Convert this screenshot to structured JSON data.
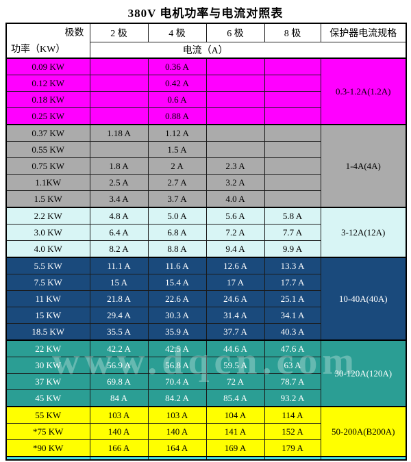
{
  "chart_data": {
    "type": "table",
    "title": "380V 电机功率与电流对照表",
    "header": {
      "corner_top": "极数",
      "corner_bottom": "功率（KW）",
      "poles": [
        "2 极",
        "4 极",
        "6 极",
        "8 极"
      ],
      "protector": "保护器电流规格",
      "current_unit_row": "电流（A）"
    },
    "sections": [
      {
        "bg": "#FF00FF",
        "fg": "#000000",
        "protector": "0.3-1.2A(1.2A)",
        "rows": [
          {
            "power": "0.09 KW",
            "currents": [
              "",
              "0.36 A",
              "",
              ""
            ]
          },
          {
            "power": "0.12 KW",
            "currents": [
              "",
              "0.42 A",
              "",
              ""
            ]
          },
          {
            "power": "0.18 KW",
            "currents": [
              "",
              "0.6 A",
              "",
              ""
            ]
          },
          {
            "power": "0.25 KW",
            "currents": [
              "",
              "0.88 A",
              "",
              ""
            ]
          }
        ]
      },
      {
        "bg": "#ABABAB",
        "fg": "#000000",
        "protector": "1-4A(4A)",
        "rows": [
          {
            "power": "0.37 KW",
            "currents": [
              "1.18 A",
              "1.12 A",
              "",
              ""
            ]
          },
          {
            "power": "0.55 KW",
            "currents": [
              "",
              "1.5 A",
              "",
              ""
            ]
          },
          {
            "power": "0.75 KW",
            "currents": [
              "1.8 A",
              "2 A",
              "2.3 A",
              ""
            ]
          },
          {
            "power": "1.1KW",
            "currents": [
              "2.5 A",
              "2.7 A",
              "3.2 A",
              ""
            ]
          },
          {
            "power": "1.5 KW",
            "currents": [
              "3.4 A",
              "3.7 A",
              "4.0 A",
              ""
            ]
          }
        ]
      },
      {
        "bg": "#D8F5F5",
        "fg": "#000000",
        "protector": "3-12A(12A)",
        "rows": [
          {
            "power": "2.2 KW",
            "currents": [
              "4.8 A",
              "5.0 A",
              "5.6 A",
              "5.8 A"
            ]
          },
          {
            "power": "3.0 KW",
            "currents": [
              "6.4 A",
              "6.8 A",
              "7.2 A",
              "7.7 A"
            ]
          },
          {
            "power": "4.0 KW",
            "currents": [
              "8.2 A",
              "8.8 A",
              "9.4 A",
              "9.9 A"
            ]
          }
        ]
      },
      {
        "bg": "#1A4A7C",
        "fg": "#FFFFFF",
        "protector": "10-40A(40A)",
        "rows": [
          {
            "power": "5.5 KW",
            "currents": [
              "11.1 A",
              "11.6 A",
              "12.6 A",
              "13.3 A"
            ]
          },
          {
            "power": "7.5 KW",
            "currents": [
              "15 A",
              "15.4 A",
              "17 A",
              "17.7 A"
            ]
          },
          {
            "power": "11 KW",
            "currents": [
              "21.8 A",
              "22.6 A",
              "24.6 A",
              "25.1 A"
            ]
          },
          {
            "power": "15 KW",
            "currents": [
              "29.4 A",
              "30.3 A",
              "31.4 A",
              "34.1 A"
            ]
          },
          {
            "power": "18.5 KW",
            "currents": [
              "35.5 A",
              "35.9 A",
              "37.7 A",
              "40.3 A"
            ]
          }
        ]
      },
      {
        "bg": "#2B9E94",
        "fg": "#FFFFFF",
        "protector": "30-120A(120A)",
        "rows": [
          {
            "power": "22 KW",
            "currents": [
              "42.2 A",
              "42.5 A",
              "44.6 A",
              "47.6 A"
            ]
          },
          {
            "power": "30 KW",
            "currents": [
              "56.9 A",
              "56.8 A",
              "59.5 A",
              "63 A"
            ]
          },
          {
            "power": "37 KW",
            "currents": [
              "69.8 A",
              "70.4 A",
              "72 A",
              "78.7 A"
            ]
          },
          {
            "power": "45 KW",
            "currents": [
              "84 A",
              "84.2 A",
              "85.4 A",
              "93.2 A"
            ]
          }
        ]
      },
      {
        "bg": "#FFFF00",
        "fg": "#000000",
        "protector": "50-200A(B200A)",
        "rows": [
          {
            "power": "55 KW",
            "currents": [
              "103 A",
              "103 A",
              "104 A",
              "114 A"
            ]
          },
          {
            "power": "*75 KW",
            "currents": [
              "140 A",
              "140 A",
              "141 A",
              "152 A"
            ]
          },
          {
            "power": "*90 KW",
            "currents": [
              "166 A",
              "164 A",
              "169 A",
              "179 A"
            ]
          }
        ]
      }
    ]
  },
  "watermark": "www.dqcn.com",
  "colors": {
    "border": "#1a1a1a",
    "cutoff_strip": "#45DFE5"
  }
}
